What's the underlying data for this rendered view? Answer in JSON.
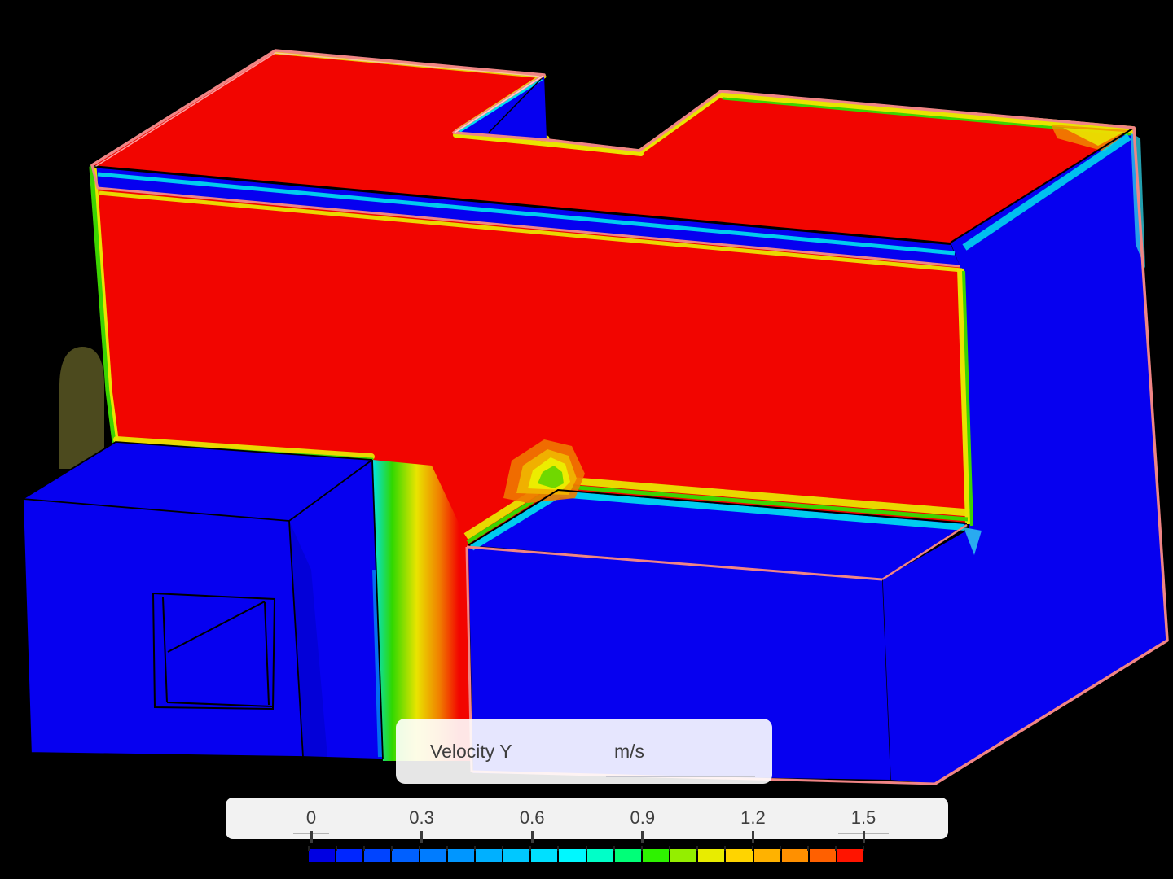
{
  "viewport": {
    "background": "#000000",
    "legend_panel": {
      "field_label": "Velocity Y",
      "unit_label": "m/s"
    },
    "scale_panel": {
      "tick_labels": [
        "0",
        "0.3",
        "0.6",
        "0.9",
        "1.2",
        "1.5"
      ],
      "min_label": "0",
      "max_label": "1.5"
    },
    "colorbar": {
      "segments": 20,
      "colors": [
        "#0000e2",
        "#0026ff",
        "#0044ff",
        "#0060ff",
        "#007cff",
        "#0096ff",
        "#00b0ff",
        "#00c8ff",
        "#00e0ff",
        "#00f8ff",
        "#00ffc8",
        "#00ff78",
        "#2ef200",
        "#94ee00",
        "#e8ec00",
        "#ffd400",
        "#ffb200",
        "#ff9000",
        "#ff6000",
        "#ff1400"
      ]
    },
    "scene": {
      "colors": {
        "surface_positive_red": "#f20500",
        "surface_negative_blue": "#0600f0",
        "edge_outline_salmon": "#f08585",
        "fringe_yellow": "#e9e400",
        "fringe_green": "#3cd400",
        "fringe_cyan": "#00e2ee",
        "fringe_orange": "#f08000",
        "shadow_olive": "#4c4a1e"
      }
    }
  }
}
